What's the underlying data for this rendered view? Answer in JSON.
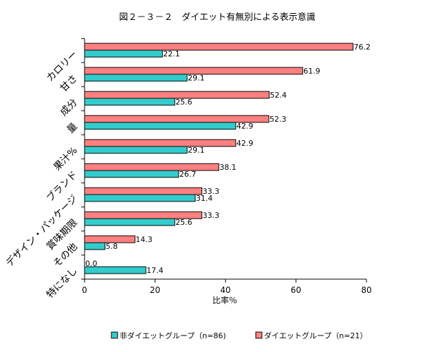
{
  "chart_data": {
    "type": "bar",
    "orientation": "horizontal",
    "title": "図２－３－２　ダイエット有無別による表示意識",
    "xlabel": "比率％",
    "ylabel": "",
    "xlim": [
      0,
      80
    ],
    "xticks": [
      0,
      20,
      40,
      60,
      80
    ],
    "grid": false,
    "legend_position": "bottom",
    "categories": [
      "カロリー",
      "甘さ",
      "成分",
      "量",
      "果汁%",
      "ブランド",
      "デザイン・パッケージ",
      "賞味期限",
      "その他",
      "特になし"
    ],
    "series": [
      {
        "name": "非ダイエットグループ（n=86)",
        "color": "#33CCCC",
        "values": [
          22.1,
          29.1,
          25.6,
          42.9,
          29.1,
          26.7,
          31.4,
          25.6,
          5.8,
          17.4
        ],
        "labels": [
          "22.1",
          "29.1",
          "25.6",
          "42.9",
          "29.1",
          "26.7",
          "31.4",
          "25.6",
          "5.8",
          "17.4"
        ]
      },
      {
        "name": "ダイエットグループ（n=21）",
        "color": "#FF8080",
        "values": [
          76.2,
          61.9,
          52.4,
          52.3,
          42.9,
          38.1,
          33.3,
          33.3,
          14.3,
          0.0
        ],
        "labels": [
          "76.2",
          "61.9",
          "52.4",
          "52.3",
          "42.9",
          "38.1",
          "33.3",
          "33.3",
          "14.3",
          "0.0"
        ]
      }
    ]
  }
}
